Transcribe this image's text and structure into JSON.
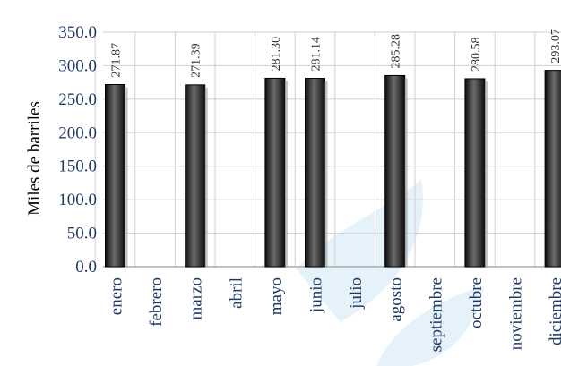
{
  "chart_data": {
    "type": "bar",
    "ylabel": "Miles de barriles",
    "categories": [
      "enero",
      "febrero",
      "marzo",
      "abril",
      "mayo",
      "junio",
      "julio",
      "agosto",
      "septiembre",
      "octubre",
      "noviembre",
      "diciembre"
    ],
    "values": [
      271.87,
      null,
      271.39,
      null,
      281.3,
      281.14,
      null,
      285.28,
      null,
      280.58,
      null,
      293.07
    ],
    "data_labels": [
      "271.87",
      "",
      "271.39",
      "",
      "281.30",
      "281.14",
      "",
      "285.28",
      "",
      "280.58",
      "",
      "293.07"
    ],
    "ylim": [
      0,
      350
    ],
    "yticks": [
      0,
      50,
      100,
      150,
      200,
      250,
      300,
      350
    ],
    "ytick_labels": [
      "0.0",
      "50.0",
      "100.0",
      "150.0",
      "200.0",
      "250.0",
      "300.0",
      "350.0"
    ],
    "grid": true,
    "colors": {
      "bar": "#1a1a1a",
      "bar_highlight": "#6b6b6b",
      "tick_text": "#1f3864",
      "grid": "#cfcfcf"
    }
  }
}
